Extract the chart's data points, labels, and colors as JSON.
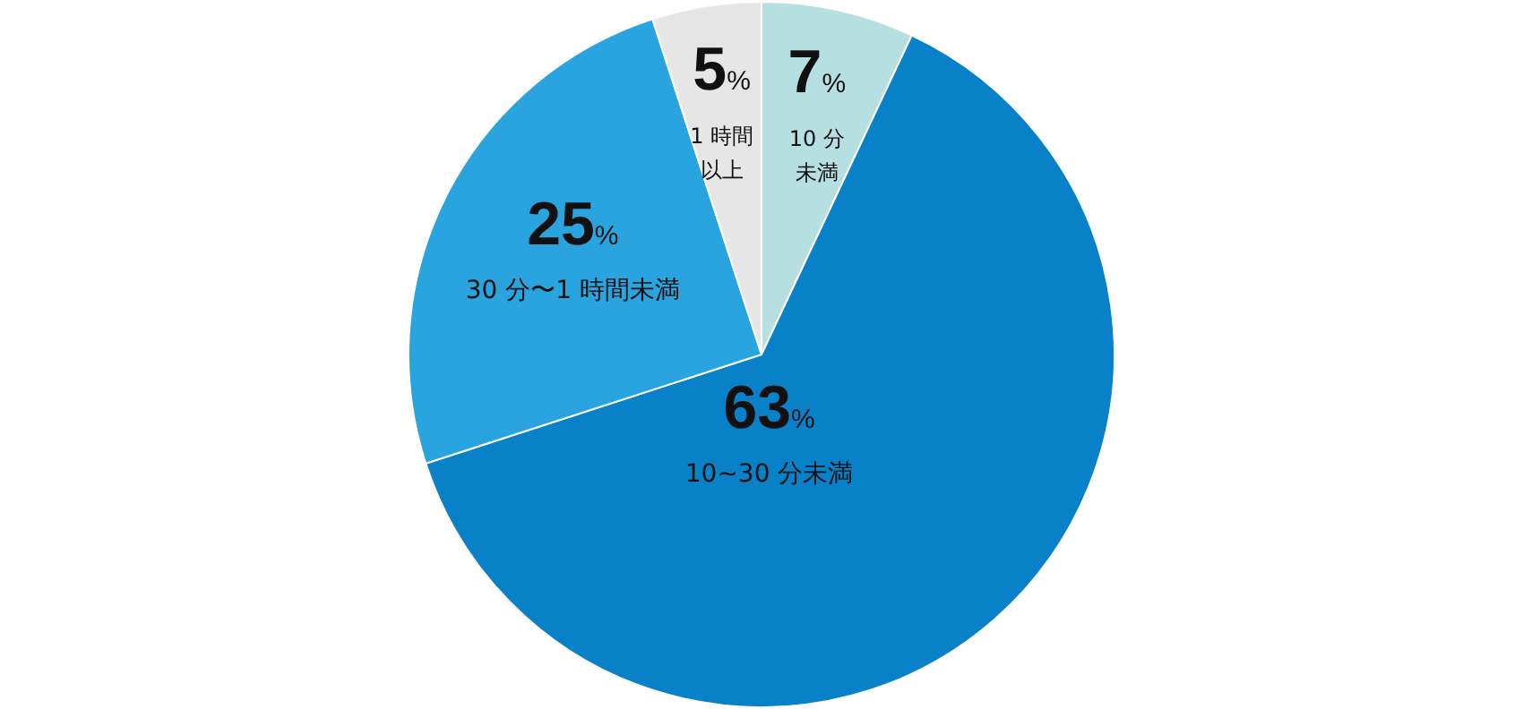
{
  "chart_data": {
    "type": "pie",
    "categories": [
      "10 分未満",
      "10~30 分未満",
      "30 分〜1 時間未満",
      "1 時間以上"
    ],
    "values": [
      7,
      63,
      25,
      5
    ],
    "value_labels": [
      "7%",
      "63%",
      "25%",
      "5%"
    ],
    "colors": [
      "#b5dfe0",
      "#0981c8",
      "#29a4de",
      "#e6e6e6"
    ]
  }
}
